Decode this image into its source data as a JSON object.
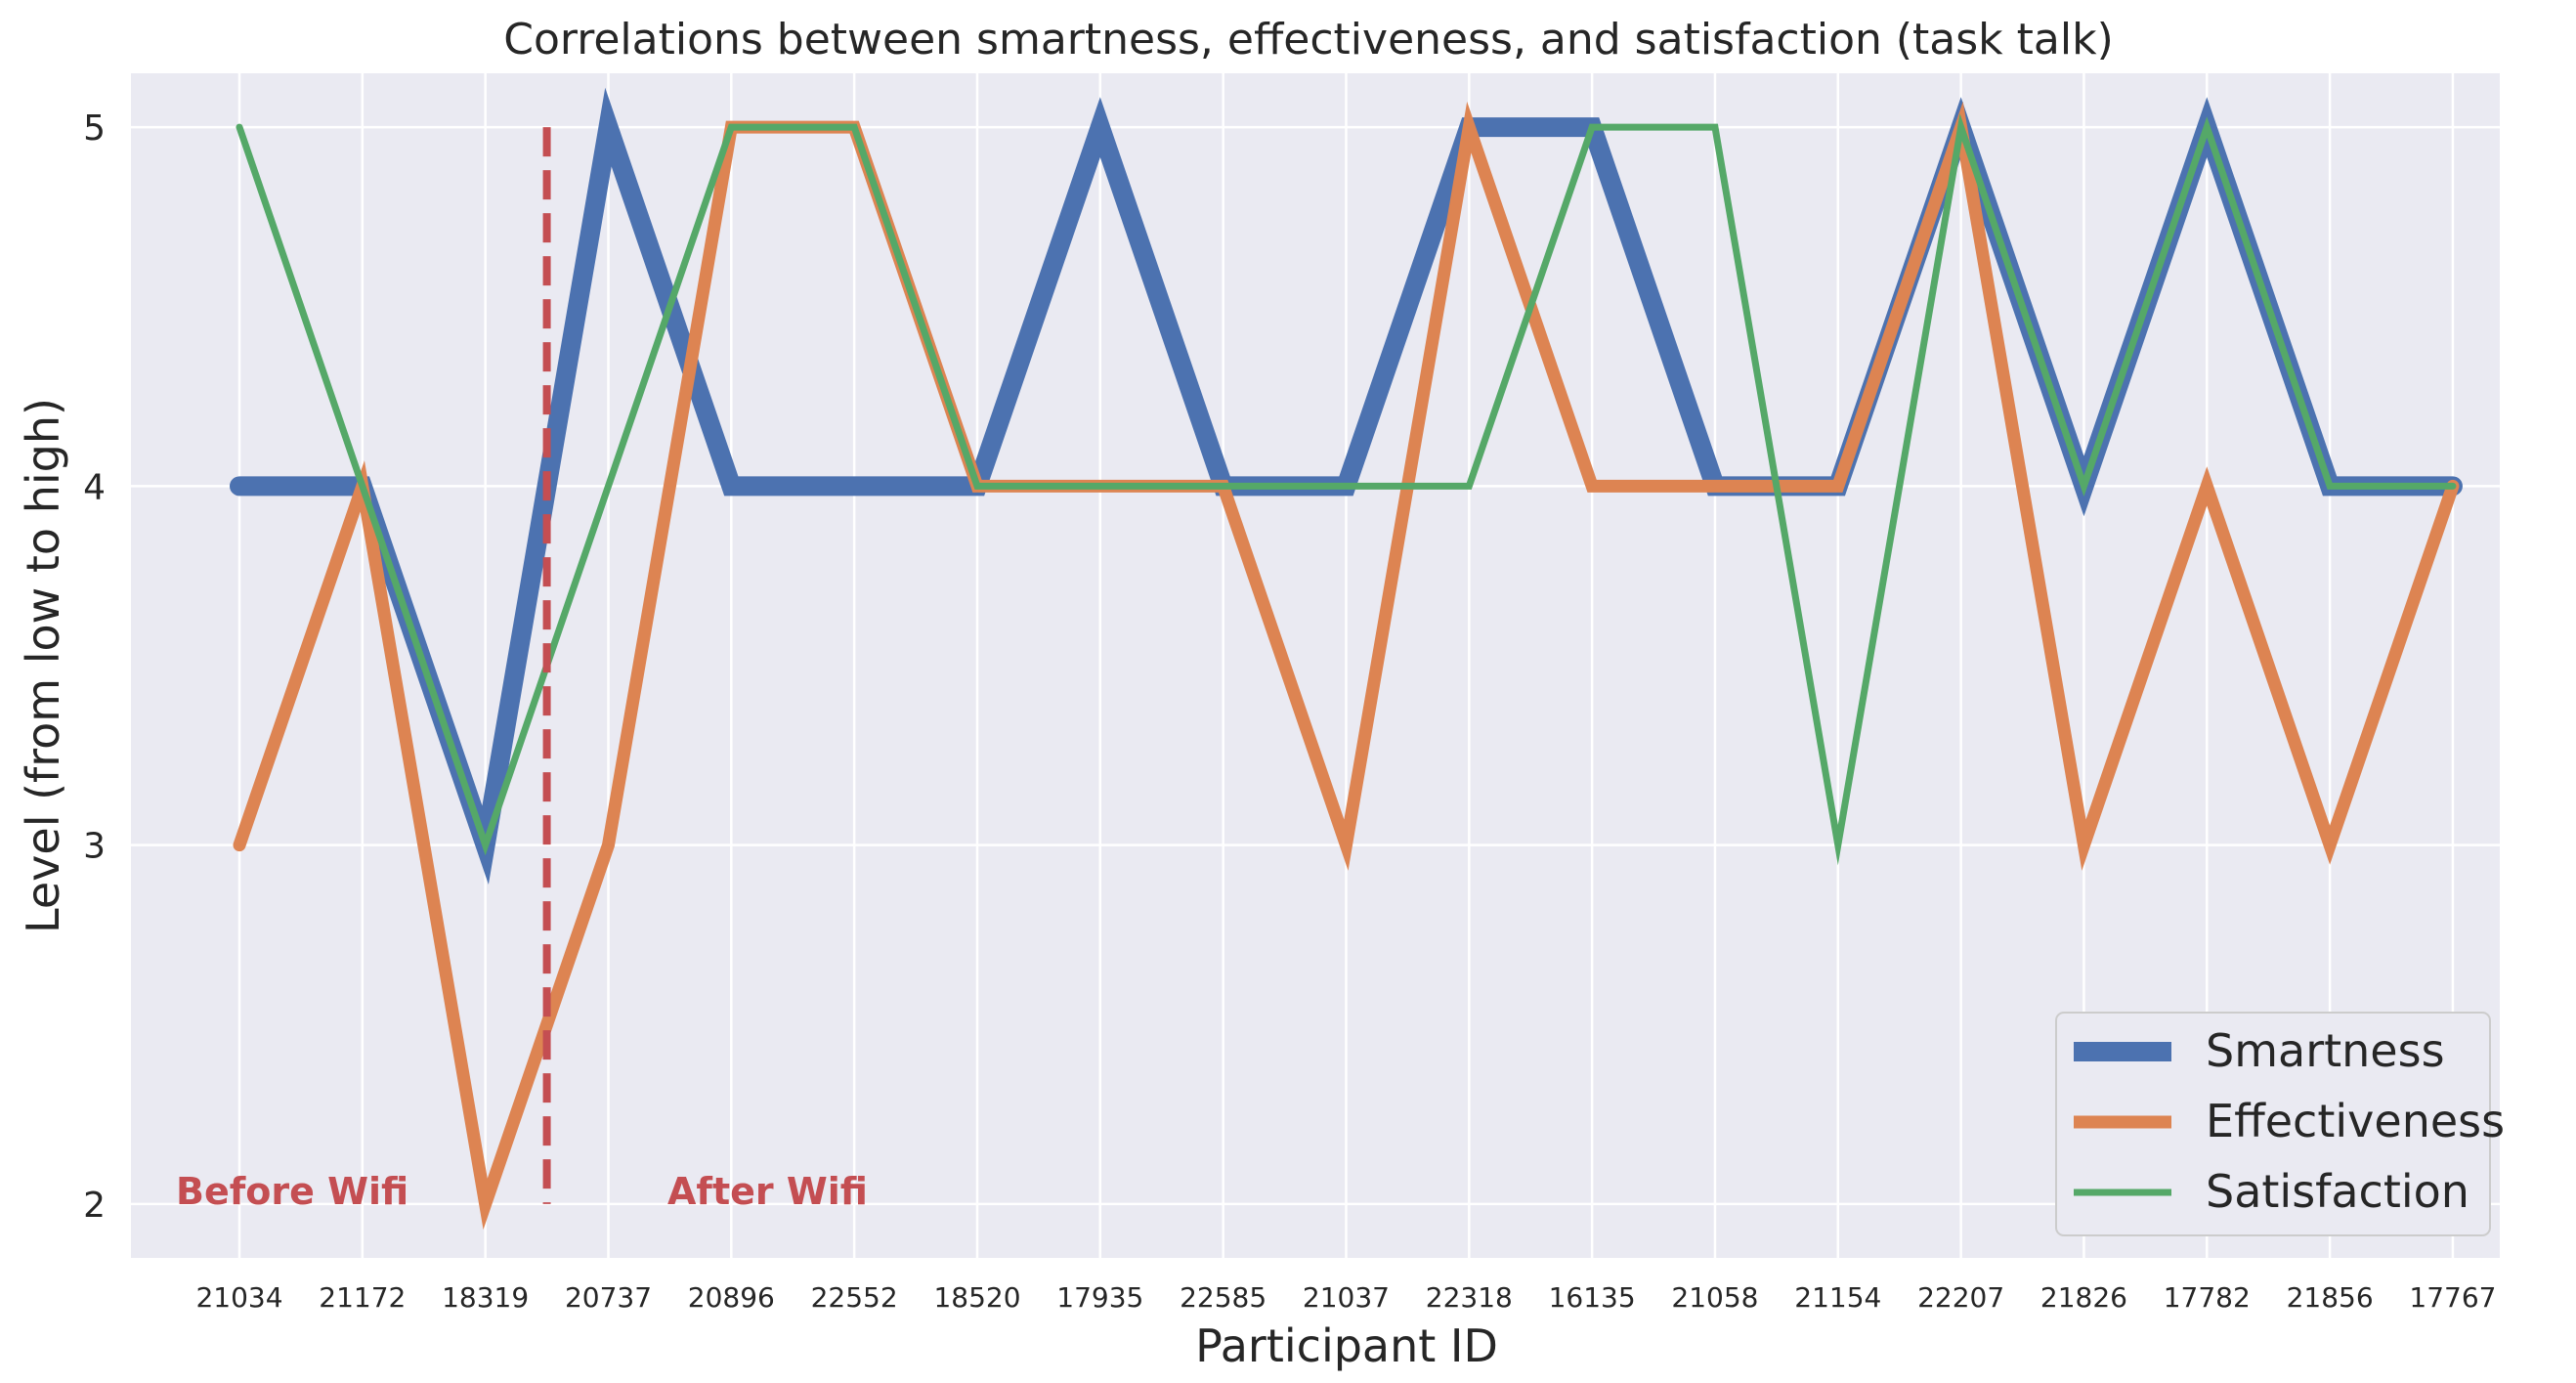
{
  "chart_data": {
    "type": "line",
    "title": "Correlations between smartness, effectiveness, and satisfaction (task talk)",
    "xlabel": "Participant ID",
    "ylabel": "Level (from low to high)",
    "categories": [
      "21034",
      "21172",
      "18319",
      "20737",
      "20896",
      "22552",
      "18520",
      "17935",
      "22585",
      "21037",
      "22318",
      "16135",
      "21058",
      "21154",
      "22207",
      "21826",
      "17782",
      "21856",
      "17767"
    ],
    "yticks": [
      "2",
      "3",
      "4",
      "5"
    ],
    "ylim": [
      1.85,
      5.15
    ],
    "grid": true,
    "legend_position": "lower-right",
    "series": [
      {
        "name": "Smartness",
        "color": "#4c72b0",
        "values": [
          4,
          4,
          3,
          5,
          4,
          4,
          4,
          5,
          4,
          4,
          5,
          5,
          4,
          4,
          5,
          4,
          5,
          4,
          4
        ]
      },
      {
        "name": "Effectiveness",
        "color": "#dd8452",
        "values": [
          3,
          4,
          2,
          3,
          5,
          5,
          4,
          4,
          4,
          3,
          5,
          4,
          4,
          4,
          5,
          3,
          4,
          3,
          4
        ]
      },
      {
        "name": "Satisfaction",
        "color": "#55a868",
        "values": [
          5,
          4,
          3,
          4,
          5,
          5,
          4,
          4,
          4,
          4,
          4,
          5,
          5,
          3,
          5,
          4,
          5,
          4,
          4
        ]
      }
    ],
    "divider": {
      "x_position": 2.5,
      "color": "#c44e52"
    },
    "annotations": [
      {
        "text": "Before Wifi",
        "color": "#c44e52"
      },
      {
        "text": "After Wifi",
        "color": "#c44e52"
      }
    ]
  }
}
